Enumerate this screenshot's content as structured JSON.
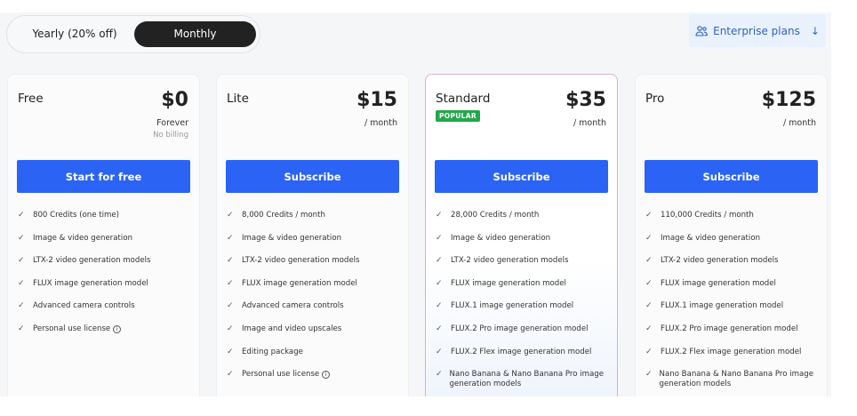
{
  "billing_toggle": {
    "yearly": "Yearly (20% off)",
    "monthly": "Monthly",
    "selected": "Monthly"
  },
  "enterprise": {
    "label": "Enterprise plans",
    "icon": "users-icon",
    "arrow": "arrow-down-icon"
  },
  "colors": {
    "button": "#2b63f5",
    "popular_badge": "#22a84a",
    "enterprise_text": "#2f5fd0"
  },
  "plans": [
    {
      "name": "Free",
      "price": "$0",
      "period": "Forever",
      "note": "No billing",
      "button": "Start for free",
      "features": [
        "800 Credits (one time)",
        "Image & video generation",
        "LTX-2 video generation models",
        "FLUX image generation model",
        "Advanced camera controls",
        "Personal use license"
      ],
      "info_on_last": true
    },
    {
      "name": "Lite",
      "price": "$15",
      "period": "/ month",
      "button": "Subscribe",
      "features": [
        "8,000 Credits / month",
        "Image & video generation",
        "LTX-2 video generation models",
        "FLUX image generation model",
        "Advanced camera controls",
        "Image and video upscales",
        "Editing package",
        "Personal use license"
      ],
      "info_on_last": true
    },
    {
      "name": "Standard",
      "badge": "POPULAR",
      "price": "$35",
      "period": "/ month",
      "button": "Subscribe",
      "features": [
        "28,000 Credits / month",
        "Image & video generation",
        "LTX-2 video generation models",
        "FLUX image generation model",
        "FLUX.1 image generation model",
        "FLUX.2 Pro image generation model",
        "FLUX.2 Flex image generation model",
        "Nano Banana & Nano Banana Pro image generation models"
      ]
    },
    {
      "name": "Pro",
      "price": "$125",
      "period": "/ month",
      "button": "Subscribe",
      "features": [
        "110,000 Credits / month",
        "Image & video generation",
        "LTX-2 video generation models",
        "FLUX image generation model",
        "FLUX.1 image generation model",
        "FLUX.2 Pro image generation model",
        "FLUX.2 Flex image generation model",
        "Nano Banana & Nano Banana Pro image generation models"
      ]
    }
  ]
}
